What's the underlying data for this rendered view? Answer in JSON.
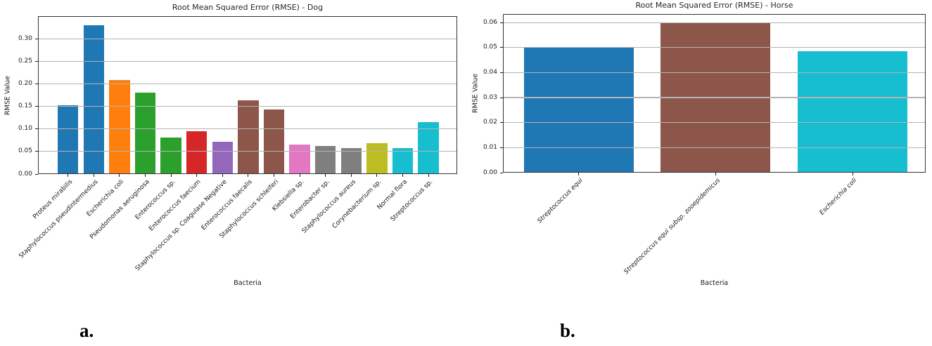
{
  "figure": {
    "labels": [
      {
        "text": "a."
      },
      {
        "text": "b."
      }
    ]
  },
  "chart_data": [
    {
      "type": "bar",
      "title": "Root Mean Squared Error (RMSE) - Dog",
      "xlabel": "Bacteria",
      "ylabel": "RMSE Value",
      "categories": [
        "Proteus mirabilis",
        "Staphylococcus pseudintermedius",
        "Escherichia coli",
        "Pseudomonas aeruginosa",
        "Enterococcus sp.",
        "Enterococcus faecium",
        "Staphylococcus sp. Coagulase Negative",
        "Enterococcus faecalis",
        "Staphylococcus schleiferi",
        "Klebsiella sp.",
        "Enterobacter sp.",
        "Staphylococcus aureus",
        "Corynebacterium sp.",
        "Normal flora",
        "Streptococcus sp."
      ],
      "values": [
        0.152,
        0.33,
        0.209,
        0.181,
        0.081,
        0.095,
        0.071,
        0.164,
        0.143,
        0.066,
        0.062,
        0.058,
        0.068,
        0.058,
        0.115
      ],
      "bar_colors": [
        "#1f77b4",
        "#1f77b4",
        "#ff7f0e",
        "#2ca02c",
        "#2ca02c",
        "#d62728",
        "#9467bd",
        "#8c564b",
        "#8c564b",
        "#e377c2",
        "#7f7f7f",
        "#7f7f7f",
        "#bcbd22",
        "#17becf",
        "#17becf"
      ],
      "ytick_labels": [
        "0.00",
        "0.05",
        "0.10",
        "0.15",
        "0.20",
        "0.25",
        "0.30"
      ],
      "ylim": [
        0,
        0.35
      ],
      "grid": true,
      "legend": "none",
      "xtick_style": "rotated-45"
    },
    {
      "type": "bar",
      "title": "Root Mean Squared Error (RMSE) - Horse",
      "xlabel": "Bacteria",
      "ylabel": "RMSE Value",
      "categories": [
        "Streptococcus equi",
        "Streptococcus equi subsp. zooepidemicus",
        "Escherichia coli"
      ],
      "values": [
        0.05,
        0.06,
        0.0485
      ],
      "bar_colors": [
        "#1f77b4",
        "#8c564b",
        "#17becf"
      ],
      "ytick_labels": [
        "0.00",
        "0.01",
        "0.02",
        "0.03",
        "0.04",
        "0.05",
        "0.06"
      ],
      "ylim": [
        0,
        0.0634
      ],
      "grid": true,
      "legend": "none",
      "xtick_style": "rotated-45-italic"
    }
  ]
}
